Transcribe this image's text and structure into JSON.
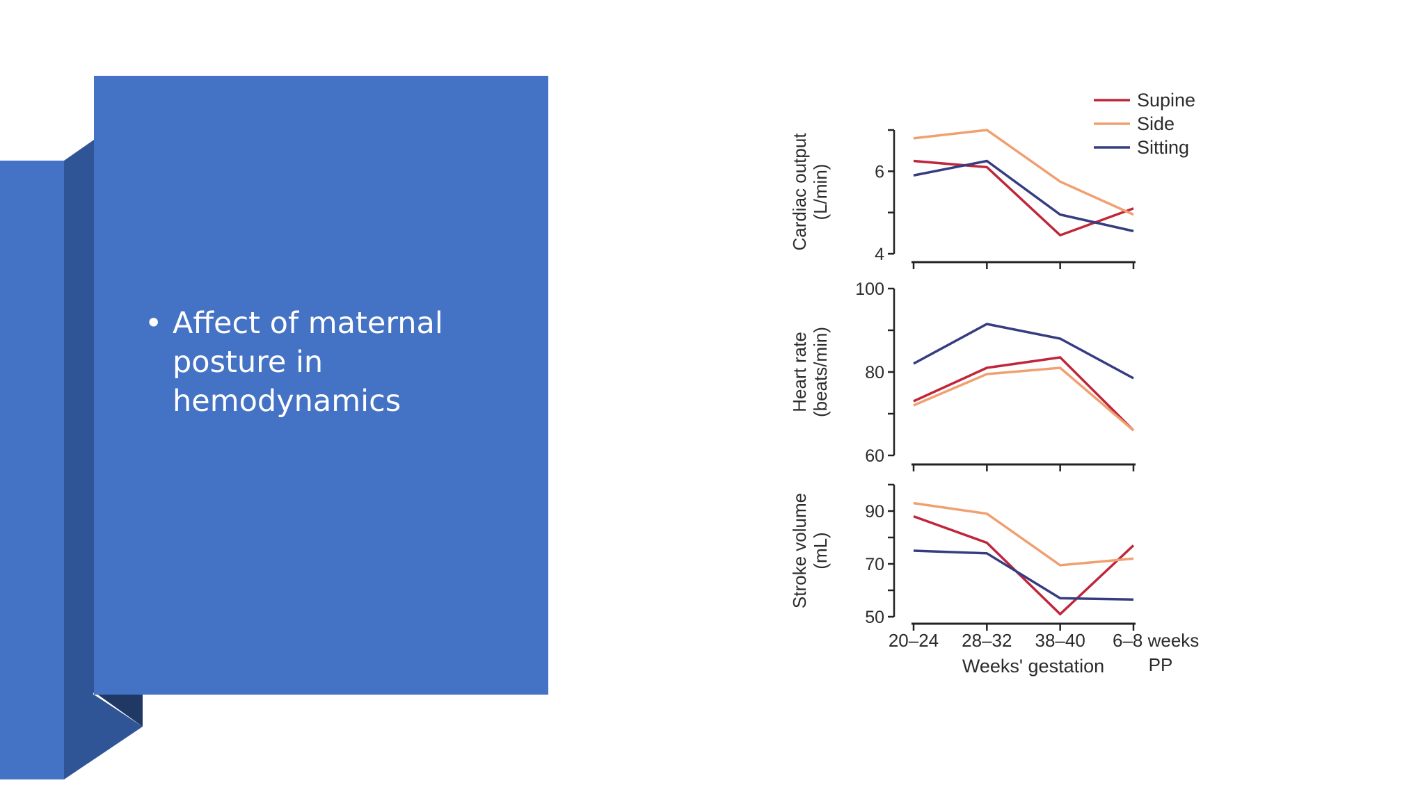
{
  "slide": {
    "bullet_symbol": "•",
    "bullet_text": "Affect of maternal posture in hemodynamics",
    "colors": {
      "panel": "#4472c4",
      "left_bar": "#4472c4",
      "fold": "#2f5597",
      "fold_shadow": "#1f3864"
    }
  },
  "chart_data": {
    "type": "line",
    "x": [
      "20–24",
      "28–32",
      "38–40",
      "6–8 weeks"
    ],
    "x_extra_label": "PP",
    "xlabel": "Weeks' gestation",
    "legend": {
      "position": "top-right"
    },
    "series_style": [
      {
        "name": "Supine",
        "color": "#c0253a"
      },
      {
        "name": "Side",
        "color": "#f0a070"
      },
      {
        "name": "Sitting",
        "color": "#363c80"
      }
    ],
    "panels": [
      {
        "ylabel": [
          "Cardiac output",
          "(L/min)"
        ],
        "ylim": [
          4,
          7
        ],
        "yticks": [
          4,
          6
        ],
        "minor_yticks": [
          5,
          7
        ],
        "series": [
          {
            "name": "Supine",
            "values": [
              6.25,
              6.1,
              4.45,
              5.1
            ]
          },
          {
            "name": "Side",
            "values": [
              6.8,
              7.0,
              5.75,
              4.95
            ]
          },
          {
            "name": "Sitting",
            "values": [
              5.9,
              6.25,
              4.95,
              4.55
            ]
          }
        ]
      },
      {
        "ylabel": [
          "Heart rate",
          "(beats/min)"
        ],
        "ylim": [
          60,
          100
        ],
        "yticks": [
          60,
          80,
          100
        ],
        "minor_yticks": [
          70,
          90
        ],
        "series": [
          {
            "name": "Supine",
            "values": [
              73,
              81,
              83.5,
              66
            ]
          },
          {
            "name": "Side",
            "values": [
              72,
              79.5,
              81,
              66
            ]
          },
          {
            "name": "Sitting",
            "values": [
              82,
              91.5,
              88,
              78.5
            ]
          }
        ]
      },
      {
        "ylabel": [
          "Stroke volume",
          "(mL)"
        ],
        "ylim": [
          50,
          100
        ],
        "yticks": [
          50,
          70,
          90
        ],
        "minor_yticks": [
          60,
          80,
          100
        ],
        "series": [
          {
            "name": "Supine",
            "values": [
              88,
              78,
              51,
              77
            ]
          },
          {
            "name": "Side",
            "values": [
              93,
              89,
              69.5,
              72
            ]
          },
          {
            "name": "Sitting",
            "values": [
              75,
              74,
              57,
              56.5
            ]
          }
        ]
      }
    ]
  }
}
